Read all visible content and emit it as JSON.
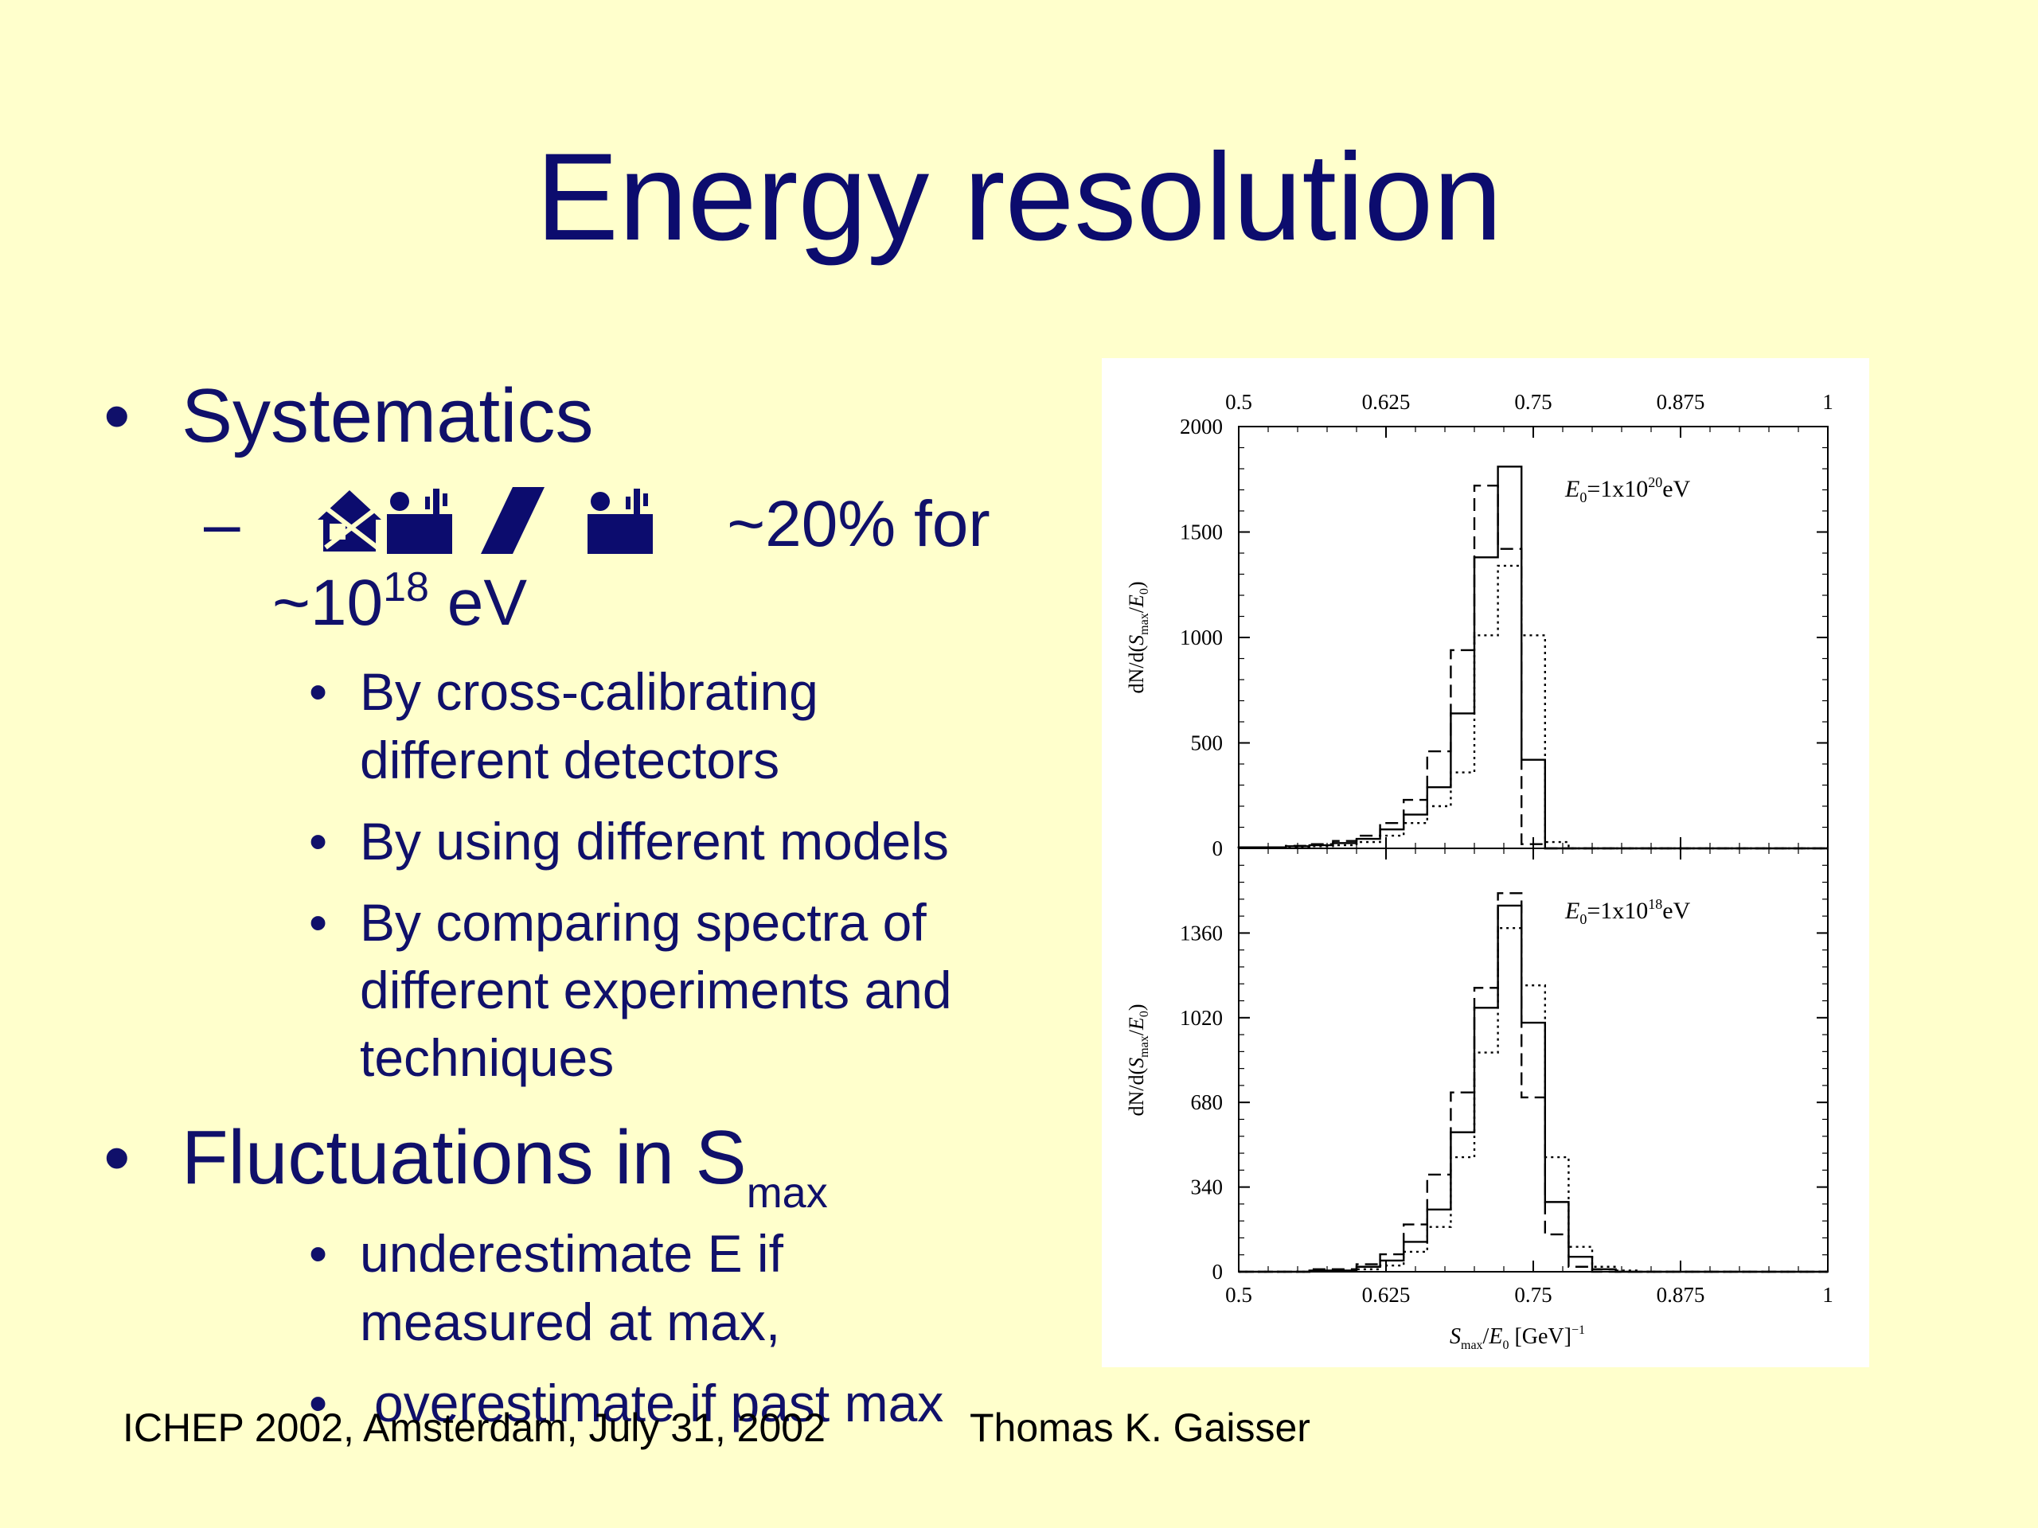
{
  "slide": {
    "title": "Energy resolution",
    "bullets": {
      "systematics": "Systematics",
      "systematics_dash": "–",
      "systematics_suffix": "~20% for",
      "systematics_line2_prefix": "~10",
      "systematics_line2_sup": "18",
      "systematics_line2_suffix": " eV",
      "sub_items": [
        [
          "By cross-calibrating",
          "different detectors"
        ],
        [
          "By using different models"
        ],
        [
          "By comparing spectra of",
          "different experiments and",
          "techniques"
        ]
      ],
      "fluctuations": "Fluctuations in S",
      "fluctuations_sub": "max",
      "fluct_items": [
        [
          " underestimate E if",
          "measured at max,"
        ],
        [
          "overestimate if  past max"
        ]
      ],
      "bullet_char": "•"
    },
    "footer": {
      "left": "ICHEP 2002, Amsterdam, July 31, 2002",
      "right": "Thomas K. Gaisser"
    },
    "icons": [
      "house-icon",
      "person-cactus-icon",
      "slash-icon",
      "person-cactus-icon"
    ]
  },
  "chart_data": [
    {
      "type": "histogram",
      "panel": "top",
      "annotation": {
        "base": "E",
        "sub": "0",
        "mid": "=1x10",
        "sup": "20",
        "end": "eV"
      },
      "xlim": [
        0.5,
        1.0
      ],
      "ylim": [
        0,
        2000
      ],
      "x_ticks": [
        "0.5",
        "0.625",
        "0.75",
        "0.875",
        "1"
      ],
      "y_ticks": [
        "0",
        "500",
        "1000",
        "1500",
        "2000"
      ],
      "y_tick_values": [
        0,
        500,
        1000,
        1500,
        2000
      ],
      "ylabel": {
        "pre": "dN/d(",
        "var": "S",
        "sub": "max",
        "mid": "/",
        "var2": "E",
        "sub2": "0",
        "post": ")"
      },
      "bin_edges": [
        0.5,
        0.54,
        0.56,
        0.58,
        0.6,
        0.62,
        0.64,
        0.66,
        0.68,
        0.7,
        0.72,
        0.74,
        0.76,
        0.78
      ],
      "series": [
        {
          "name": "",
          "style": "solid",
          "values": [
            5,
            10,
            15,
            25,
            45,
            90,
            160,
            290,
            640,
            1380,
            1810,
            420,
            0
          ]
        },
        {
          "name": "",
          "style": "dashed",
          "values": [
            5,
            12,
            20,
            35,
            60,
            120,
            230,
            460,
            940,
            1720,
            1420,
            20,
            0
          ]
        },
        {
          "name": "",
          "style": "dotted",
          "values": [
            3,
            6,
            10,
            15,
            30,
            60,
            120,
            200,
            360,
            1010,
            1340,
            1010,
            30
          ]
        }
      ]
    },
    {
      "type": "histogram",
      "panel": "bottom",
      "annotation": {
        "base": "E",
        "sub": "0",
        "mid": "=1x10",
        "sup": "18",
        "end": "eV"
      },
      "xlim": [
        0.5,
        1.0
      ],
      "ylim": [
        0,
        1700
      ],
      "x_ticks": [
        "0.5",
        "0.625",
        "0.75",
        "0.875",
        "1"
      ],
      "x_tick_values": [
        0.5,
        0.625,
        0.75,
        0.875,
        1.0
      ],
      "y_ticks": [
        "0",
        "340",
        "680",
        "1020",
        "1360"
      ],
      "y_tick_values": [
        0,
        340,
        680,
        1020,
        1360
      ],
      "ylabel": {
        "pre": "dN/d(",
        "var": "S",
        "sub": "max",
        "mid": "/",
        "var2": "E",
        "sub2": "0",
        "post": ")"
      },
      "xlabel": {
        "var": "S",
        "sub": "max",
        "mid": "/",
        "var2": "E",
        "sub2": "0",
        "post": "  [GeV]",
        "sup": "−1"
      },
      "bin_edges": [
        0.56,
        0.6,
        0.62,
        0.64,
        0.66,
        0.68,
        0.7,
        0.72,
        0.74,
        0.76,
        0.78,
        0.8,
        0.82,
        0.84
      ],
      "series": [
        {
          "name": "",
          "style": "solid",
          "values": [
            5,
            20,
            45,
            120,
            250,
            560,
            1060,
            1470,
            1000,
            280,
            60,
            10,
            0
          ]
        },
        {
          "name": "",
          "style": "dashed",
          "values": [
            10,
            30,
            70,
            190,
            390,
            720,
            1140,
            1520,
            700,
            150,
            20,
            0,
            0
          ]
        },
        {
          "name": "",
          "style": "dotted",
          "values": [
            3,
            10,
            25,
            80,
            180,
            460,
            880,
            1380,
            1150,
            460,
            100,
            20,
            5
          ]
        }
      ]
    }
  ]
}
